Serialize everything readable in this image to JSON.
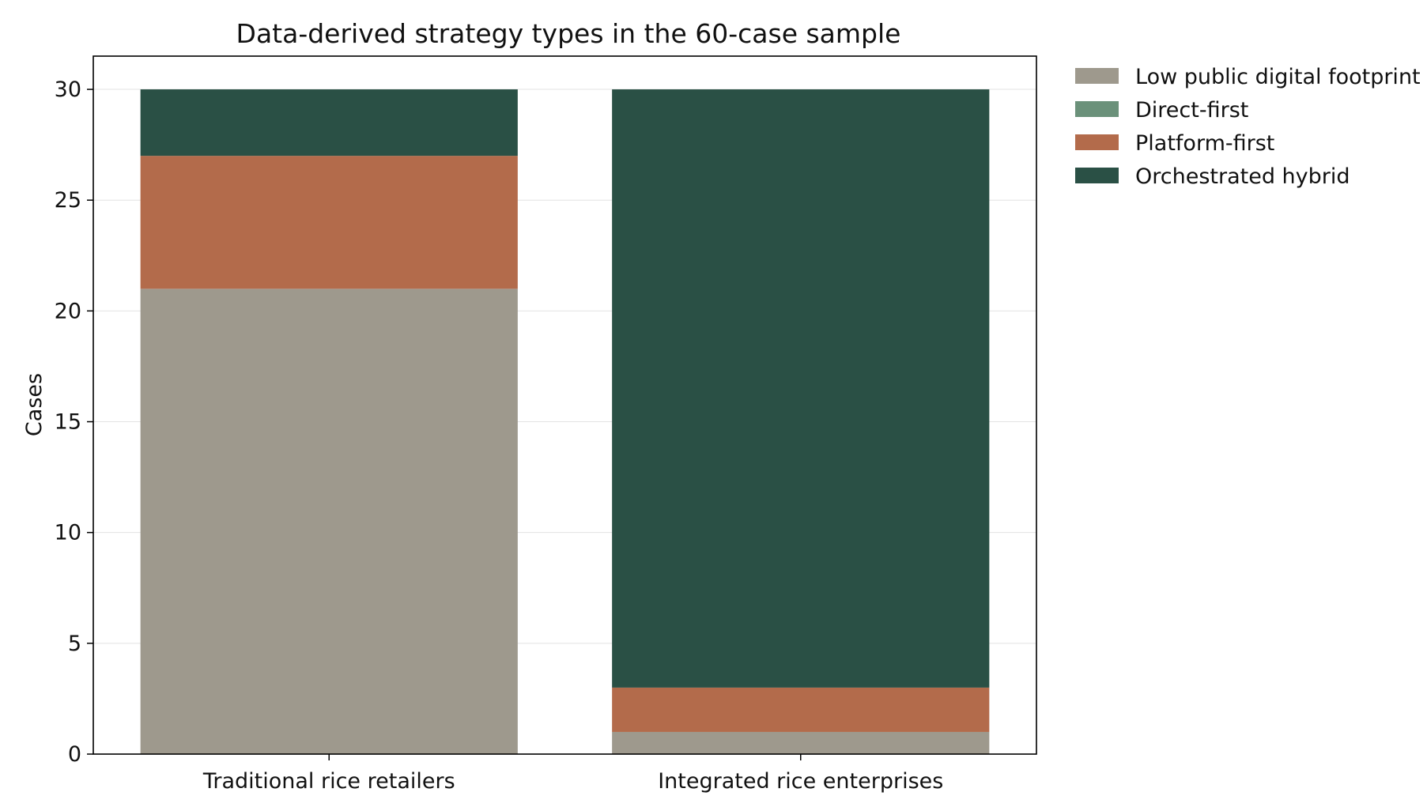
{
  "chart_data": {
    "type": "bar",
    "stacked": true,
    "title": "Data-derived strategy types in the 60-case sample",
    "xlabel": "",
    "ylabel": "Cases",
    "categories": [
      "Traditional rice retailers",
      "Integrated rice enterprises"
    ],
    "ylim": [
      0,
      31.5
    ],
    "yticks": [
      0,
      5,
      10,
      15,
      20,
      25,
      30
    ],
    "grid": true,
    "legend_position": "outside-right-top",
    "series": [
      {
        "name": "Low public digital footprint",
        "color": "#9e998d",
        "values": [
          21,
          1
        ]
      },
      {
        "name": "Direct-first",
        "color": "#6b917a",
        "values": [
          0,
          0
        ]
      },
      {
        "name": "Platform-first",
        "color": "#b36b4b",
        "values": [
          6,
          2
        ]
      },
      {
        "name": "Orchestrated hybrid",
        "color": "#2a5045",
        "values": [
          3,
          27
        ]
      }
    ]
  }
}
